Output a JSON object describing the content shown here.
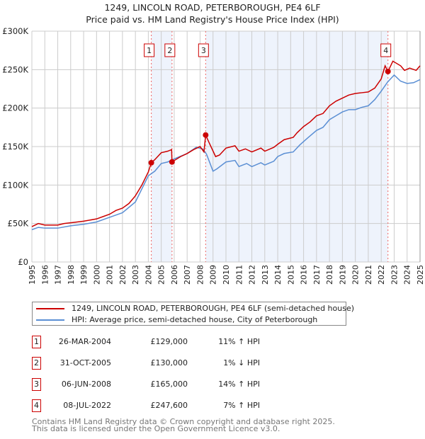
{
  "chart_data": {
    "type": "line",
    "title": "1249, LINCOLN ROAD, PETERBOROUGH, PE4 6LF",
    "subtitle": "Price paid vs. HM Land Registry's House Price Index (HPI)",
    "xlim": [
      1995,
      2025
    ],
    "ylim": [
      0,
      300000
    ],
    "grid": true,
    "y_ticks": [
      {
        "v": 0,
        "label": "£0"
      },
      {
        "v": 50000,
        "label": "£50K"
      },
      {
        "v": 100000,
        "label": "£100K"
      },
      {
        "v": 150000,
        "label": "£150K"
      },
      {
        "v": 200000,
        "label": "£200K"
      },
      {
        "v": 250000,
        "label": "£250K"
      },
      {
        "v": 300000,
        "label": "£300K"
      }
    ],
    "x_ticks": [
      "1995",
      "1996",
      "1997",
      "1998",
      "1999",
      "2000",
      "2001",
      "2002",
      "2003",
      "2004",
      "2005",
      "2006",
      "2007",
      "2008",
      "2009",
      "2010",
      "2011",
      "2012",
      "2013",
      "2014",
      "2015",
      "2016",
      "2017",
      "2018",
      "2019",
      "2020",
      "2021",
      "2022",
      "2023",
      "2024",
      "2025"
    ],
    "series": [
      {
        "name": "1249, LINCOLN ROAD, PETERBOROUGH, PE4 6LF (semi-detached house)",
        "color": "#cc0000",
        "x": [
          1995,
          1995.5,
          1996,
          1997,
          1997.5,
          1998,
          1999,
          2000,
          2000.5,
          2001,
          2001.5,
          2002,
          2002.5,
          2003,
          2003.5,
          2004,
          2004.23,
          2004.5,
          2005,
          2005.5,
          2005.8,
          2005.83,
          2006.5,
          2007,
          2007.5,
          2008,
          2008.3,
          2008.43,
          2008.7,
          2009.2,
          2009.5,
          2010,
          2010.7,
          2011,
          2011.5,
          2012,
          2012.7,
          2013,
          2013.7,
          2014,
          2014.5,
          2015.2,
          2015.5,
          2016,
          2016.5,
          2017,
          2017.5,
          2018,
          2018.5,
          2019,
          2019.5,
          2020,
          2020.5,
          2021,
          2021.5,
          2022,
          2022.3,
          2022.52,
          2022.9,
          2023.5,
          2023.8,
          2024.2,
          2024.7,
          2025
        ],
        "y": [
          46000,
          50000,
          48000,
          48000,
          50000,
          51000,
          53000,
          56000,
          59000,
          62000,
          67000,
          70000,
          76000,
          86000,
          100000,
          117000,
          129000,
          133000,
          142000,
          144000,
          146000,
          130000,
          137000,
          141000,
          146000,
          150000,
          143000,
          165000,
          155000,
          137000,
          139000,
          148000,
          151000,
          144000,
          147000,
          143000,
          148000,
          144000,
          149000,
          153000,
          159000,
          162000,
          168000,
          176000,
          182000,
          190000,
          193000,
          203000,
          209000,
          213000,
          217000,
          219000,
          220000,
          221000,
          226000,
          238000,
          255000,
          247600,
          261000,
          255000,
          249000,
          252000,
          249000,
          255000
        ]
      },
      {
        "name": "HPI: Average price, semi-detached house, City of Peterborough",
        "color": "#5b8fd4",
        "x": [
          1995,
          1995.5,
          1996,
          1997,
          1998,
          1999,
          2000,
          2001,
          2002,
          2003,
          2003.5,
          2004,
          2004.5,
          2005,
          2005.5,
          2006,
          2007,
          2007.7,
          2008.2,
          2008.5,
          2009,
          2009.3,
          2010,
          2010.7,
          2011,
          2011.6,
          2012,
          2012.7,
          2013,
          2013.7,
          2014,
          2014.5,
          2015.2,
          2015.7,
          2016.3,
          2017,
          2017.5,
          2018,
          2018.5,
          2019,
          2019.5,
          2020,
          2020.5,
          2021,
          2021.5,
          2022,
          2022.5,
          2023,
          2023.5,
          2024,
          2024.5,
          2025
        ],
        "y": [
          42000,
          45000,
          44000,
          44000,
          47000,
          49000,
          52000,
          58000,
          64000,
          78000,
          95000,
          112000,
          118000,
          128000,
          130000,
          134000,
          141000,
          149000,
          147000,
          140000,
          118000,
          121000,
          130000,
          132000,
          124000,
          128000,
          124000,
          129000,
          126000,
          131000,
          137000,
          141000,
          143000,
          152000,
          161000,
          171000,
          175000,
          185000,
          190000,
          195000,
          198000,
          198000,
          201000,
          203000,
          211000,
          222000,
          234000,
          243000,
          235000,
          232000,
          233000,
          237000
        ]
      }
    ],
    "sales": [
      {
        "n": "1",
        "x": 2004.23,
        "price": 129000,
        "date": "26-MAR-2004",
        "price_label": "£129,000",
        "hpi": "11% ↑ HPI"
      },
      {
        "n": "2",
        "x": 2005.83,
        "price": 130000,
        "date": "31-OCT-2005",
        "price_label": "£130,000",
        "hpi": "1% ↓ HPI"
      },
      {
        "n": "3",
        "x": 2008.43,
        "price": 165000,
        "date": "06-JUN-2008",
        "price_label": "£165,000",
        "hpi": "14% ↑ HPI"
      },
      {
        "n": "4",
        "x": 2022.52,
        "price": 247600,
        "date": "08-JUL-2022",
        "price_label": "£247,600",
        "hpi": "7% ↑ HPI"
      }
    ],
    "shade_color": "#eef3fc"
  },
  "footer": {
    "line1": "Contains HM Land Registry data © Crown copyright and database right 2025.",
    "line2": "This data is licensed under the Open Government Licence v3.0."
  }
}
